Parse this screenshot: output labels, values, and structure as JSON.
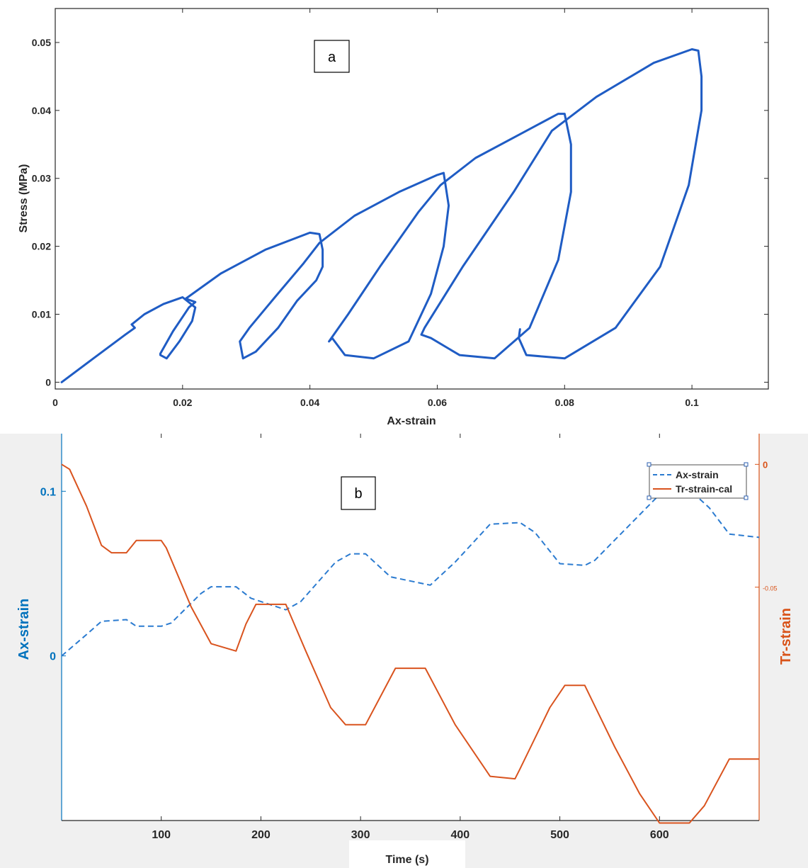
{
  "chart_data": [
    {
      "type": "line",
      "panel_label": "a",
      "xlabel": "Ax-strain",
      "ylabel": "Stress (MPa)",
      "xlim": [
        0,
        0.112
      ],
      "ylim": [
        -0.001,
        0.055
      ],
      "x_ticks": [
        "0",
        "0.02",
        "0.04",
        "0.06",
        "0.08",
        "0.1"
      ],
      "y_ticks": [
        "0",
        "0.01",
        "0.02",
        "0.03",
        "0.04",
        "0.05"
      ],
      "grid": false,
      "colors": {
        "line": "#1f5cc4"
      },
      "series": [
        {
          "x": [
            0.001,
            0.006,
            0.011,
            0.0125,
            0.012,
            0.014,
            0.017,
            0.02,
            0.022,
            0.0215,
            0.0195,
            0.0175,
            0.0165,
            0.0165,
            0.0185,
            0.021,
            0.022,
            0.0205,
            0.026,
            0.033,
            0.04,
            0.0415,
            0.042,
            0.042,
            0.041,
            0.038,
            0.035,
            0.0315,
            0.0295,
            0.029,
            0.0305,
            0.0345,
            0.039,
            0.0415,
            0.047,
            0.054,
            0.06,
            0.061,
            0.0618,
            0.061,
            0.059,
            0.0555,
            0.05,
            0.0455,
            0.0435,
            0.043,
            0.046,
            0.051,
            0.057,
            0.0605,
            0.066,
            0.073,
            0.079,
            0.08,
            0.081,
            0.081,
            0.079,
            0.0745,
            0.069,
            0.0635,
            0.059,
            0.0575,
            0.058,
            0.064,
            0.072,
            0.078,
            0.085,
            0.094,
            0.1,
            0.101,
            0.1015,
            0.1015,
            0.0995,
            0.095,
            0.088,
            0.08,
            0.074,
            0.0728,
            0.073
          ],
          "y": [
            0.0,
            0.0035,
            0.007,
            0.008,
            0.0085,
            0.01,
            0.0115,
            0.0125,
            0.011,
            0.009,
            0.006,
            0.0035,
            0.004,
            0.0042,
            0.0075,
            0.011,
            0.0118,
            0.0123,
            0.016,
            0.0195,
            0.022,
            0.0218,
            0.0195,
            0.017,
            0.015,
            0.012,
            0.008,
            0.0045,
            0.0035,
            0.006,
            0.008,
            0.0125,
            0.0175,
            0.0205,
            0.0245,
            0.028,
            0.0305,
            0.0308,
            0.026,
            0.02,
            0.013,
            0.006,
            0.0035,
            0.004,
            0.0065,
            0.006,
            0.01,
            0.017,
            0.025,
            0.029,
            0.033,
            0.0365,
            0.0395,
            0.0395,
            0.035,
            0.028,
            0.018,
            0.008,
            0.0035,
            0.004,
            0.0065,
            0.007,
            0.008,
            0.017,
            0.028,
            0.037,
            0.042,
            0.047,
            0.049,
            0.0488,
            0.045,
            0.04,
            0.029,
            0.017,
            0.008,
            0.0035,
            0.004,
            0.0065,
            0.0078
          ]
        }
      ]
    },
    {
      "type": "line",
      "panel_label": "b",
      "xlabel": "Time (s)",
      "ylabel_left": "Ax-strain",
      "ylabel_right": "Tr-strain",
      "xlim": [
        0,
        700
      ],
      "ylim_left": [
        -0.1,
        0.135
      ],
      "ylim_right": [
        -0.145,
        0.0125
      ],
      "x_ticks": [
        "100",
        "200",
        "300",
        "400",
        "500",
        "600"
      ],
      "y_ticks_left": [
        "0",
        "0.1"
      ],
      "y_ticks_right": [
        "0",
        "-0.05"
      ],
      "legend": "top-right",
      "colors": {
        "ax": "#2b7bd0",
        "tr": "#d9531e",
        "left_axis": "#0072bd",
        "right_axis": "#d95319"
      },
      "series": [
        {
          "name": "Ax-strain",
          "style": "dashed",
          "axis": "left",
          "x": [
            0,
            25,
            40,
            65,
            75,
            100,
            110,
            140,
            150,
            175,
            190,
            225,
            240,
            275,
            290,
            305,
            330,
            370,
            395,
            430,
            460,
            475,
            500,
            525,
            535,
            600,
            610,
            630,
            650,
            670,
            700
          ],
          "y": [
            0.0,
            0.013,
            0.021,
            0.022,
            0.018,
            0.018,
            0.02,
            0.038,
            0.042,
            0.042,
            0.035,
            0.028,
            0.033,
            0.057,
            0.062,
            0.062,
            0.048,
            0.043,
            0.057,
            0.08,
            0.081,
            0.075,
            0.056,
            0.055,
            0.058,
            0.098,
            0.101,
            0.101,
            0.09,
            0.074,
            0.072
          ]
        },
        {
          "name": "Tr-strain-cal",
          "style": "solid",
          "axis": "right",
          "x": [
            0,
            8,
            25,
            40,
            50,
            65,
            75,
            100,
            105,
            130,
            150,
            175,
            185,
            195,
            205,
            225,
            245,
            270,
            285,
            305,
            335,
            365,
            395,
            430,
            455,
            460,
            490,
            505,
            525,
            555,
            580,
            600,
            630,
            645,
            670,
            700
          ],
          "y": [
            0.0,
            -0.002,
            -0.017,
            -0.033,
            -0.036,
            -0.036,
            -0.031,
            -0.031,
            -0.034,
            -0.058,
            -0.073,
            -0.076,
            -0.065,
            -0.057,
            -0.057,
            -0.057,
            -0.076,
            -0.099,
            -0.106,
            -0.106,
            -0.083,
            -0.083,
            -0.106,
            -0.127,
            -0.128,
            -0.124,
            -0.099,
            -0.09,
            -0.09,
            -0.115,
            -0.134,
            -0.146,
            -0.146,
            -0.139,
            -0.12,
            -0.12
          ]
        }
      ]
    }
  ]
}
